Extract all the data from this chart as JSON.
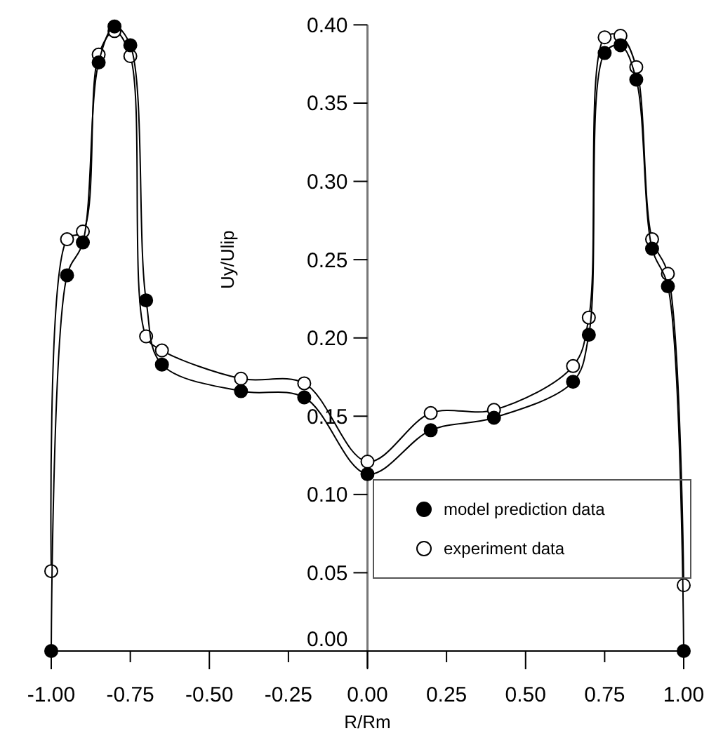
{
  "chart_data": {
    "type": "line",
    "xlabel": "R/Rm",
    "ylabel": "Uy/Ulip",
    "x": [
      -1,
      -0.95,
      -0.9,
      -0.85,
      -0.8,
      -0.75,
      -0.7,
      -0.65,
      -0.4,
      -0.2,
      0,
      0.2,
      0.4,
      0.65,
      0.7,
      0.75,
      0.8,
      0.85,
      0.9,
      0.95,
      1
    ],
    "series": [
      {
        "name": "model prediction data",
        "color": "#000000",
        "values": [
          0,
          0.24,
          0.261,
          0.376,
          0.399,
          0.387,
          0.224,
          0.183,
          0.166,
          0.162,
          0.113,
          0.141,
          0.149,
          0.172,
          0.202,
          0.382,
          0.387,
          0.365,
          0.257,
          0.233,
          0
        ]
      },
      {
        "name": "experiment data",
        "color": "#ffffff",
        "values": [
          0.051,
          0.263,
          0.268,
          0.381,
          0.396,
          0.38,
          0.201,
          0.192,
          0.174,
          0.171,
          0.121,
          0.152,
          0.154,
          0.182,
          0.213,
          0.392,
          0.393,
          0.373,
          0.263,
          0.241,
          0.042
        ]
      }
    ],
    "xlim": [
      -1,
      1
    ],
    "xticks": [
      {
        "value": -1,
        "label": "-1.00"
      },
      {
        "value": -0.75,
        "label": "-0.75"
      },
      {
        "value": -0.5,
        "label": "-0.50"
      },
      {
        "value": -0.25,
        "label": "-0.25"
      },
      {
        "value": 0,
        "label": "0.00"
      },
      {
        "value": 0.25,
        "label": "0.25"
      },
      {
        "value": 0.5,
        "label": "0.50"
      },
      {
        "value": 0.75,
        "label": "0.75"
      },
      {
        "value": 1,
        "label": "1.00"
      }
    ],
    "ylim": [
      0,
      0.4
    ],
    "yticks": [
      {
        "value": 0,
        "label": "0.00"
      },
      {
        "value": 0.05,
        "label": "0.05"
      },
      {
        "value": 0.1,
        "label": "0.10"
      },
      {
        "value": 0.15,
        "label": "0.15"
      },
      {
        "value": 0.2,
        "label": "0.20"
      },
      {
        "value": 0.25,
        "label": "0.25"
      },
      {
        "value": 0.3,
        "label": "0.30"
      },
      {
        "value": 0.35,
        "label": "0.35"
      },
      {
        "value": 0.4,
        "label": "0.40"
      }
    ],
    "marker": "circle",
    "line_style": "solid",
    "legend": "bottom right",
    "grid": false
  }
}
